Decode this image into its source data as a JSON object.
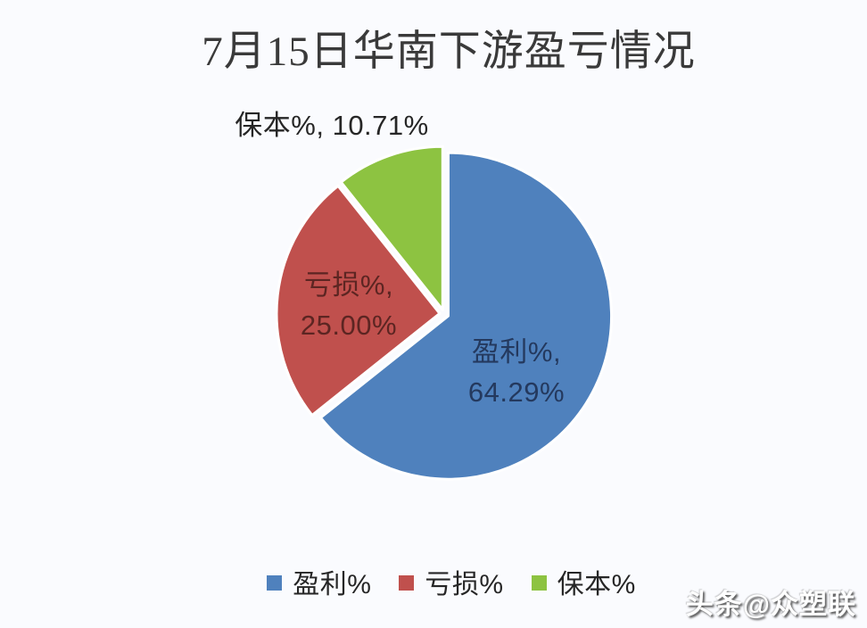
{
  "chart_data": {
    "type": "pie",
    "title": "7月15日华南下游盈亏情况",
    "legend_position": "bottom",
    "direction": "clockwise",
    "start_angle_deg": 0,
    "slices": [
      {
        "id": "profit",
        "label": "盈利%",
        "value": 64.29,
        "display_label": "盈利%,",
        "display_value": "64.29%",
        "color": "#4f81bd",
        "label_color": "#24395e",
        "label_placement": "inside"
      },
      {
        "id": "loss",
        "label": "亏损%",
        "value": 25.0,
        "display_label": "亏损%,",
        "display_value": "25.00%",
        "color": "#c0504d",
        "label_color": "#5c2522",
        "label_placement": "inside"
      },
      {
        "id": "breakeven",
        "label": "保本%",
        "value": 10.71,
        "display_label": "保本%,",
        "display_value": "10.71%",
        "color": "#8dc341",
        "label_color": "#262626",
        "label_placement": "outside"
      }
    ]
  },
  "watermark": {
    "text": "头条@众塑联"
  }
}
